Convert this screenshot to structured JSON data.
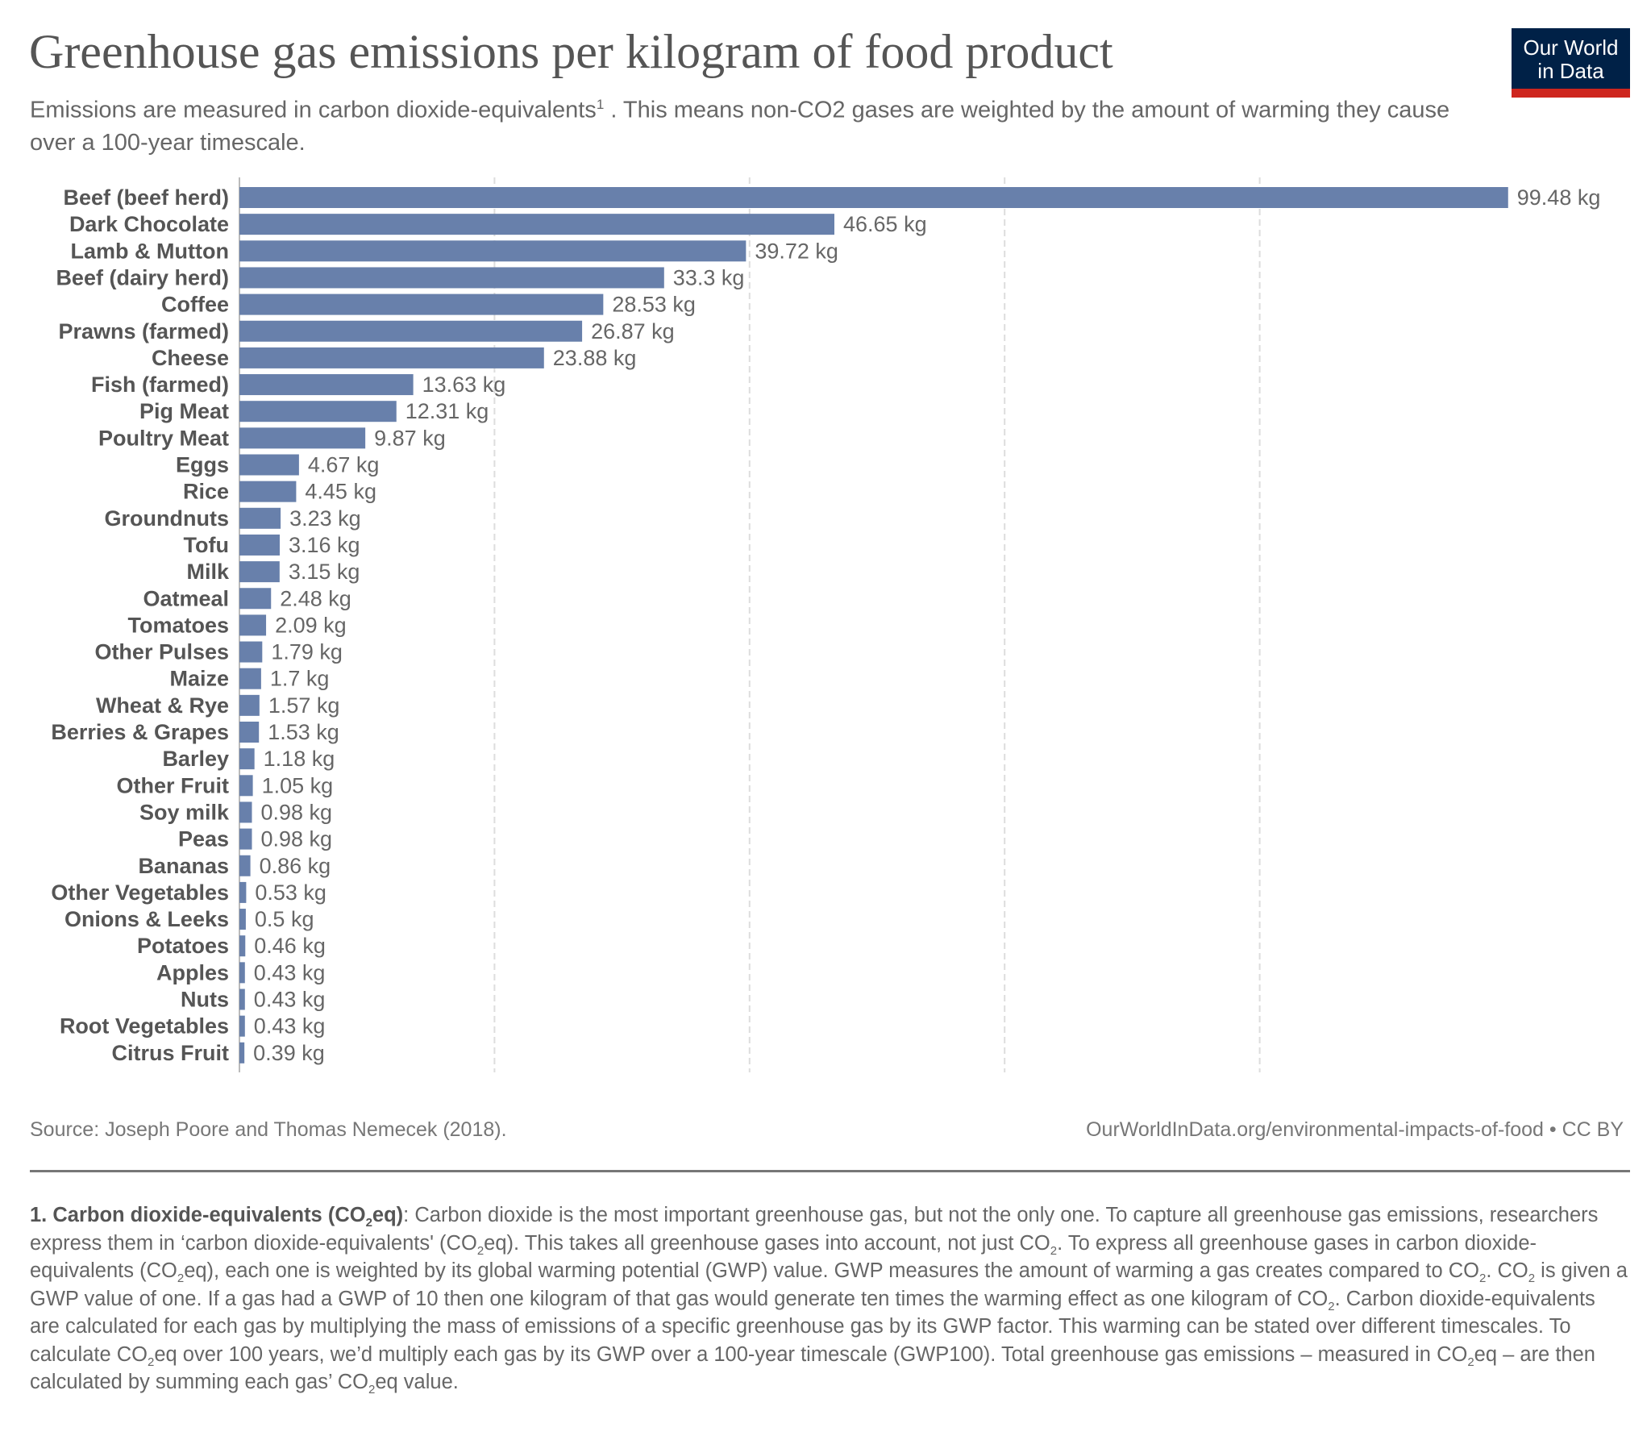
{
  "header": {
    "title": "Greenhouse gas emissions per kilogram of food product",
    "subtitle_a": "Emissions are measured in carbon dioxide-equivalents",
    "subtitle_sup": "1",
    "subtitle_b": " . This means non-CO2 gases are weighted by the amount of warming they cause over a 100-year timescale.",
    "logo_line1": "Our World",
    "logo_line2": "in Data"
  },
  "colors": {
    "bar": "#6880ab",
    "logo_bg": "#002147",
    "logo_accent": "#ce261e"
  },
  "chart_data": {
    "type": "bar",
    "orientation": "horizontal",
    "categories": [
      "Beef (beef herd)",
      "Dark Chocolate",
      "Lamb & Mutton",
      "Beef (dairy herd)",
      "Coffee",
      "Prawns (farmed)",
      "Cheese",
      "Fish (farmed)",
      "Pig Meat",
      "Poultry Meat",
      "Eggs",
      "Rice",
      "Groundnuts",
      "Tofu",
      "Milk",
      "Oatmeal",
      "Tomatoes",
      "Other Pulses",
      "Maize",
      "Wheat & Rye",
      "Berries & Grapes",
      "Barley",
      "Other Fruit",
      "Soy milk",
      "Peas",
      "Bananas",
      "Other Vegetables",
      "Onions & Leeks",
      "Potatoes",
      "Apples",
      "Nuts",
      "Root Vegetables",
      "Citrus Fruit"
    ],
    "values": [
      99.48,
      46.65,
      39.72,
      33.3,
      28.53,
      26.87,
      23.88,
      13.63,
      12.31,
      9.87,
      4.67,
      4.45,
      3.23,
      3.16,
      3.15,
      2.48,
      2.09,
      1.79,
      1.7,
      1.57,
      1.53,
      1.18,
      1.05,
      0.98,
      0.98,
      0.86,
      0.53,
      0.5,
      0.46,
      0.43,
      0.43,
      0.43,
      0.39
    ],
    "unit_suffix": " kg",
    "xlim": [
      0,
      100
    ],
    "grid_values": [
      20,
      40,
      60,
      80
    ],
    "grid": true
  },
  "footer": {
    "source": "Source: Joseph Poore and Thomas Nemecek (2018).",
    "url": "OurWorldInData.org/environmental-impacts-of-food • CC BY"
  },
  "footnote": [
    {
      "b": "1. Carbon dioxide-equivalents (CO"
    },
    {
      "subb": "2"
    },
    {
      "b": "eq)"
    },
    {
      "t": ": Carbon dioxide is the most important greenhouse gas, but not the only one. To capture all greenhouse gas emissions, researchers express them in ‘carbon dioxide-equivalents' (CO"
    },
    {
      "sub": "2"
    },
    {
      "t": "eq). This takes all greenhouse gases into account, not just CO"
    },
    {
      "sub": "2"
    },
    {
      "t": ". To express all greenhouse gases in carbon dioxide-equivalents (CO"
    },
    {
      "sub": "2"
    },
    {
      "t": "eq), each one is weighted by its global warming potential (GWP) value. GWP measures the amount of warming a gas creates compared to CO"
    },
    {
      "sub": "2"
    },
    {
      "t": ". CO"
    },
    {
      "sub": "2"
    },
    {
      "t": " is given a GWP value of one. If a gas had a GWP of 10 then one kilogram of that gas would generate ten times the warming effect as one kilogram of CO"
    },
    {
      "sub": "2"
    },
    {
      "t": ". Carbon dioxide-equivalents are calculated for each gas by multiplying the mass of emissions of a specific greenhouse gas by its GWP factor. This warming can be stated over different timescales. To calculate CO"
    },
    {
      "sub": "2"
    },
    {
      "t": "eq over 100 years, we’d multiply each gas by its GWP over a 100-year timescale (GWP100). Total greenhouse gas emissions – measured in CO"
    },
    {
      "sub": "2"
    },
    {
      "t": "eq – are then calculated by summing each gas’ CO"
    },
    {
      "sub": "2"
    },
    {
      "t": "eq value."
    }
  ]
}
